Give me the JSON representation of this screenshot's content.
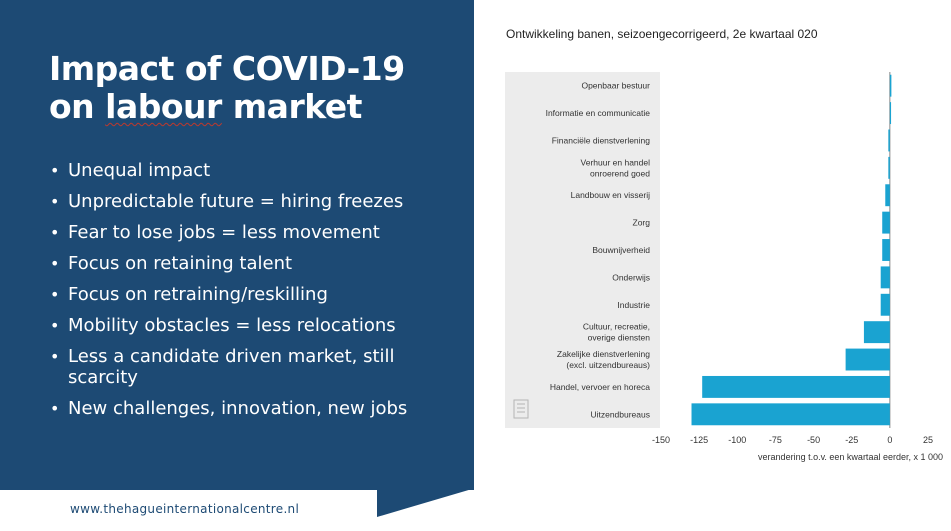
{
  "slide": {
    "title_line1": "Impact of COVID-19",
    "title_line2_a": "on ",
    "title_line2_b": "labour",
    "title_line2_c": " market",
    "bullets": [
      "Unequal impact",
      "Unpredictable future = hiring freezes",
      "Fear to lose jobs = less movement",
      "Focus on retaining talent",
      "Focus on retraining/reskilling",
      "Mobility obstacles = less relocations",
      "Less a candidate driven market, still scarcity",
      "New challenges, innovation, new jobs"
    ],
    "footer_url": "www.thehagueinternationalcentre.nl",
    "panel_color": "#1d4a74"
  },
  "chart_data": {
    "type": "bar",
    "orientation": "horizontal",
    "title": "Ontwikkeling banen, seizoengecorrigeerd, 2e kwartaal 020",
    "xlabel": "verandering t.o.v. een kwartaal eerder, x 1 000",
    "ylabel": "",
    "xlim": [
      -150,
      25
    ],
    "xticks": [
      "-150",
      "-125",
      "-100",
      "-75",
      "-50",
      "-25",
      "0",
      "25"
    ],
    "bar_color": "#1aa3d1",
    "categories": [
      [
        "Openbaar bestuur"
      ],
      [
        "Informatie en communicatie"
      ],
      [
        "Financiële dienstverlening"
      ],
      [
        "Verhuur en handel",
        "onroerend goed"
      ],
      [
        "Landbouw en visserij"
      ],
      [
        "Zorg"
      ],
      [
        "Bouwnijverheid"
      ],
      [
        "Onderwijs"
      ],
      [
        "Industrie"
      ],
      [
        "Cultuur, recreatie,",
        "overige diensten"
      ],
      [
        "Zakelijke dienstverlening",
        "(excl. uitzendbureaus)"
      ],
      [
        "Handel, vervoer en horeca"
      ],
      [
        "Uitzendbureaus"
      ]
    ],
    "values": [
      1,
      0,
      -1,
      -1,
      -3,
      -5,
      -5,
      -6,
      -6,
      -17,
      -29,
      -123,
      -130
    ],
    "grid": true,
    "legend": "none"
  }
}
